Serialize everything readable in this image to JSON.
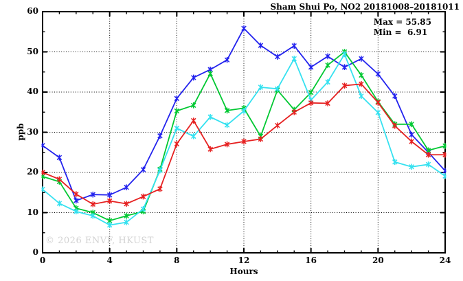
{
  "chart_data": {
    "type": "line",
    "title": "Sham Shui Po, NO2 20181008–20181011",
    "xlabel": "Hours",
    "ylabel": "ppb",
    "xlim": [
      0,
      24
    ],
    "ylim": [
      0,
      60
    ],
    "x_major_ticks": [
      0,
      4,
      8,
      12,
      16,
      20,
      24
    ],
    "x_minor_step": 1,
    "y_major_ticks": [
      0,
      10,
      20,
      30,
      40,
      50,
      60
    ],
    "y_minor_step": 5,
    "grid": {
      "x_at": [
        4,
        8,
        12,
        16,
        20
      ],
      "y_at": [
        10,
        20,
        30,
        40,
        50
      ]
    },
    "legend": "none",
    "x": [
      0,
      1,
      2,
      3,
      4,
      5,
      6,
      7,
      8,
      9,
      10,
      11,
      12,
      13,
      14,
      15,
      16,
      17,
      18,
      19,
      20,
      21,
      22,
      23,
      24
    ],
    "series": [
      {
        "name": "blue",
        "color": "#2323ee",
        "values": [
          26.7,
          23.7,
          13.0,
          14.5,
          14.4,
          16.3,
          20.7,
          29.1,
          38.4,
          43.6,
          45.6,
          48.0,
          55.85,
          51.6,
          48.8,
          51.5,
          46.2,
          48.9,
          46.2,
          48.3,
          44.5,
          39.0,
          29.4,
          25.0,
          20.4
        ]
      },
      {
        "name": "green",
        "color": "#00c832",
        "values": [
          19.0,
          17.7,
          11.1,
          10.0,
          8.0,
          9.2,
          10.3,
          20.8,
          35.3,
          36.7,
          44.6,
          35.4,
          36.0,
          29.0,
          40.5,
          35.6,
          39.9,
          46.7,
          50.0,
          44.2,
          37.6,
          32.0,
          32.0,
          25.5,
          26.6
        ]
      },
      {
        "name": "cyan",
        "color": "#35e1f0",
        "values": [
          15.8,
          12.3,
          10.3,
          9.2,
          6.91,
          7.6,
          10.9,
          20.5,
          31.0,
          29.0,
          33.8,
          31.8,
          35.3,
          41.2,
          40.8,
          48.3,
          38.0,
          42.5,
          49.4,
          39.0,
          34.9,
          22.6,
          21.4,
          22.0,
          19.1
        ]
      },
      {
        "name": "red",
        "color": "#e62020",
        "values": [
          20.0,
          18.3,
          14.6,
          12.1,
          12.9,
          12.2,
          14.0,
          15.9,
          27.1,
          32.9,
          25.8,
          27.0,
          27.7,
          28.3,
          31.7,
          35.0,
          37.3,
          37.2,
          41.6,
          42.0,
          37.4,
          31.6,
          27.7,
          24.4,
          24.4
        ]
      }
    ],
    "annotations": {
      "max_label": "Max = 55.85",
      "min_label": "Min =  6.91"
    },
    "watermark": "© 2026 ENVF, HKUST"
  }
}
